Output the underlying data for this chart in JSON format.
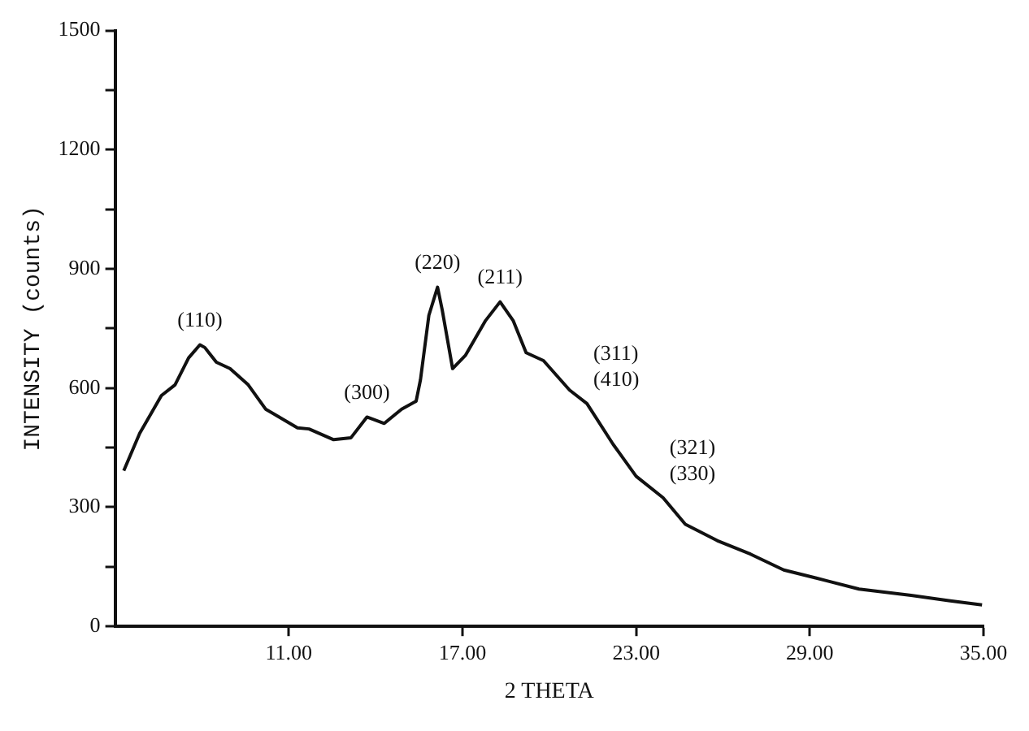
{
  "chart_data": {
    "type": "line",
    "xlabel": "2 THETA",
    "ylabel": "INTENSITY (counts)",
    "x": [
      5.3,
      5.85,
      6.6,
      7.07,
      7.54,
      7.93,
      8.1,
      8.5,
      8.97,
      9.6,
      10.2,
      11.3,
      11.7,
      12.55,
      13.15,
      13.7,
      14.3,
      14.9,
      15.4,
      15.55,
      15.84,
      16.14,
      16.3,
      16.66,
      17.1,
      17.8,
      18.3,
      18.75,
      19.2,
      19.8,
      20.7,
      21.3,
      22.2,
      23.0,
      23.93,
      24.7,
      25.8,
      26.95,
      28.1,
      29.2,
      30.7,
      32.5,
      33.8,
      34.95
    ],
    "series": [
      {
        "color": "#111111",
        "values": [
          392,
          486,
          581,
          608,
          676,
          709,
          702,
          665,
          649,
          608,
          547,
          500,
          497,
          470,
          475,
          527,
          511,
          547,
          567,
          621,
          783,
          854,
          797,
          649,
          682,
          770,
          817,
          770,
          689,
          669,
          595,
          561,
          459,
          378,
          324,
          257,
          216,
          182,
          142,
          122,
          94,
          78,
          65,
          54
        ]
      }
    ],
    "xlim": [
      5,
      35
    ],
    "xticks": [
      {
        "value": 11,
        "label": "11.00"
      },
      {
        "value": 17,
        "label": "17.00"
      },
      {
        "value": 23,
        "label": "23.00"
      },
      {
        "value": 29,
        "label": "29.00"
      },
      {
        "value": 35,
        "label": "35.00"
      }
    ],
    "ylim": [
      0,
      1500
    ],
    "yticks": [
      0,
      {
        "value": 150,
        "label": null
      },
      300,
      {
        "value": 450,
        "label": null
      },
      600,
      {
        "value": 750,
        "label": null
      },
      900,
      {
        "value": 1050,
        "label": null
      },
      1200,
      {
        "value": 1350,
        "label": null
      },
      1500
    ],
    "grid": false,
    "legend": false,
    "marker": "none",
    "line_style": "solid",
    "annotations": [
      {
        "text": "(110)",
        "x": 7.93,
        "y": 709
      },
      {
        "text": "(300)",
        "x": 13.7,
        "y": 527
      },
      {
        "text": "(220)",
        "x": 16.14,
        "y": 854
      },
      {
        "text": "(211)",
        "x": 18.3,
        "y": 817
      },
      {
        "text": "(311)",
        "x": 21.3,
        "y": 561
      },
      {
        "text": "(410)",
        "x": 21.3,
        "y": 561
      },
      {
        "text": "(321)",
        "x": 23.93,
        "y": 324
      },
      {
        "text": "(330)",
        "x": 23.93,
        "y": 324
      }
    ]
  }
}
